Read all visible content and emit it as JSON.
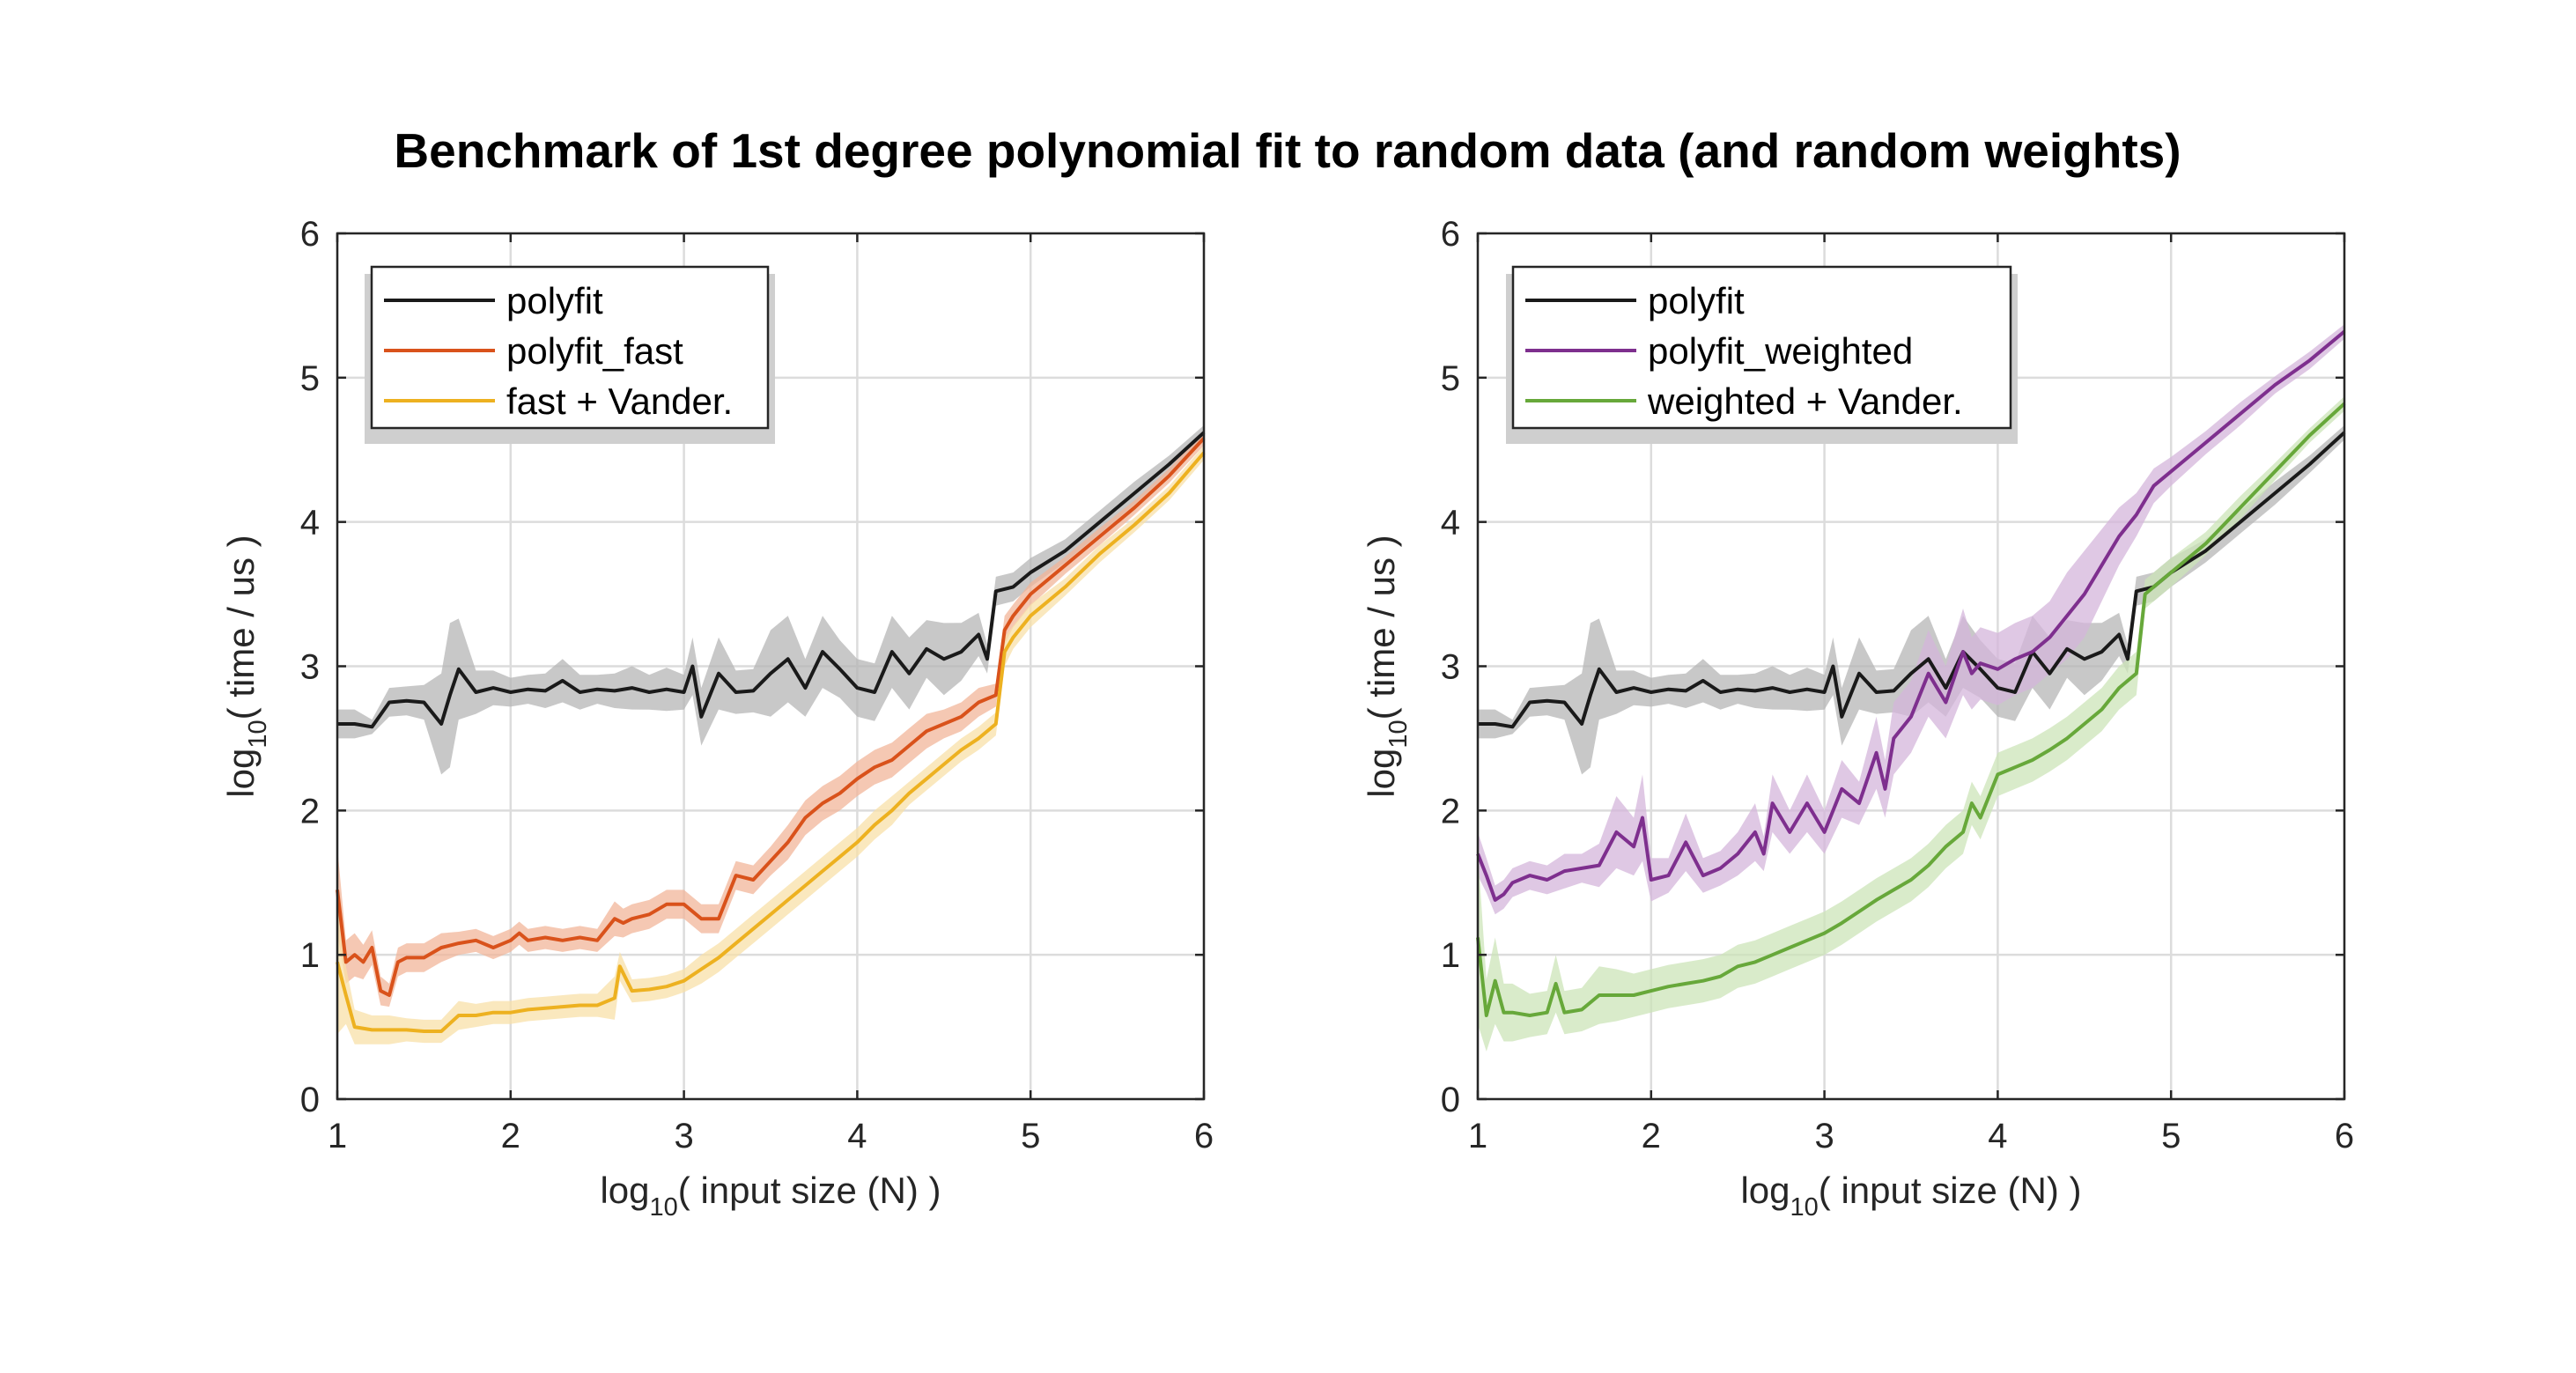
{
  "title": "Benchmark of 1st degree polynomial fit to random data (and random weights)",
  "colors": {
    "polyfit": "#1a1a1a",
    "polyfit_fast": "#d9521b",
    "fast_vander": "#edb120",
    "polyfit_weighted": "#7e2f8e",
    "weighted_vander": "#67a83a",
    "polyfit_band": "#b5b5b5",
    "fast_band": "#f2b59a",
    "fast_vander_band": "#f8e0a8",
    "weighted_band": "#d4b6db",
    "weighted_vander_band": "#cce4b8"
  },
  "chart_data": [
    {
      "type": "line",
      "xlabel": "log",
      "xlabel_sub": "10",
      "xlabel_rest": "( input size (N) )",
      "ylabel": "log",
      "ylabel_sub": "10",
      "ylabel_rest": "( time / us )",
      "xlim": [
        1,
        6
      ],
      "ylim": [
        0,
        6
      ],
      "xticks": [
        "1",
        "2",
        "3",
        "4",
        "5",
        "6"
      ],
      "yticks": [
        "0",
        "1",
        "2",
        "3",
        "4",
        "5",
        "6"
      ],
      "grid": true,
      "legend_position": "top-left",
      "series": [
        {
          "name": "polyfit",
          "color_key": "polyfit",
          "band_key": "polyfit_band",
          "x": [
            1.0,
            1.1,
            1.2,
            1.3,
            1.4,
            1.5,
            1.6,
            1.65,
            1.7,
            1.8,
            1.9,
            2.0,
            2.1,
            2.2,
            2.3,
            2.4,
            2.5,
            2.6,
            2.7,
            2.8,
            2.9,
            3.0,
            3.05,
            3.1,
            3.2,
            3.3,
            3.4,
            3.5,
            3.6,
            3.7,
            3.8,
            3.9,
            4.0,
            4.1,
            4.2,
            4.3,
            4.4,
            4.5,
            4.6,
            4.7,
            4.75,
            4.8,
            4.9,
            5.0,
            5.2,
            5.4,
            5.6,
            5.8,
            6.0
          ],
          "y": [
            2.6,
            2.6,
            2.58,
            2.75,
            2.76,
            2.75,
            2.6,
            2.8,
            2.98,
            2.82,
            2.85,
            2.82,
            2.84,
            2.83,
            2.9,
            2.82,
            2.84,
            2.83,
            2.85,
            2.82,
            2.84,
            2.82,
            3.0,
            2.65,
            2.95,
            2.82,
            2.83,
            2.95,
            3.05,
            2.85,
            3.1,
            2.98,
            2.85,
            2.82,
            3.1,
            2.95,
            3.12,
            3.05,
            3.1,
            3.22,
            3.05,
            3.52,
            3.55,
            3.65,
            3.8,
            4.0,
            4.2,
            4.4,
            4.62
          ],
          "band": [
            0.1,
            0.1,
            0.05,
            0.1,
            0.1,
            0.12,
            0.35,
            0.5,
            0.35,
            0.15,
            0.12,
            0.1,
            0.1,
            0.12,
            0.15,
            0.12,
            0.1,
            0.12,
            0.15,
            0.12,
            0.15,
            0.12,
            0.2,
            0.2,
            0.25,
            0.15,
            0.15,
            0.3,
            0.3,
            0.2,
            0.25,
            0.2,
            0.2,
            0.2,
            0.25,
            0.25,
            0.2,
            0.25,
            0.2,
            0.15,
            0.1,
            0.1,
            0.1,
            0.1,
            0.08,
            0.08,
            0.08,
            0.06,
            0.05
          ]
        },
        {
          "name": "polyfit_fast",
          "color_key": "polyfit_fast",
          "band_key": "fast_band",
          "x": [
            1.0,
            1.05,
            1.1,
            1.15,
            1.2,
            1.25,
            1.3,
            1.35,
            1.4,
            1.5,
            1.6,
            1.7,
            1.8,
            1.9,
            2.0,
            2.05,
            2.1,
            2.2,
            2.3,
            2.4,
            2.5,
            2.6,
            2.65,
            2.7,
            2.8,
            2.9,
            3.0,
            3.1,
            3.2,
            3.3,
            3.4,
            3.5,
            3.6,
            3.7,
            3.8,
            3.9,
            4.0,
            4.1,
            4.2,
            4.3,
            4.4,
            4.5,
            4.6,
            4.7,
            4.8,
            4.85,
            4.9,
            5.0,
            5.2,
            5.4,
            5.6,
            5.8,
            6.0
          ],
          "y": [
            1.45,
            0.95,
            1.0,
            0.95,
            1.05,
            0.75,
            0.72,
            0.95,
            0.98,
            0.98,
            1.05,
            1.08,
            1.1,
            1.05,
            1.1,
            1.15,
            1.1,
            1.12,
            1.1,
            1.12,
            1.1,
            1.25,
            1.22,
            1.25,
            1.28,
            1.35,
            1.35,
            1.25,
            1.25,
            1.55,
            1.52,
            1.65,
            1.78,
            1.95,
            2.05,
            2.12,
            2.22,
            2.3,
            2.35,
            2.45,
            2.55,
            2.6,
            2.65,
            2.75,
            2.8,
            3.25,
            3.35,
            3.5,
            3.7,
            3.9,
            4.1,
            4.32,
            4.58
          ],
          "band": [
            0.3,
            0.15,
            0.15,
            0.12,
            0.12,
            0.1,
            0.08,
            0.1,
            0.1,
            0.1,
            0.1,
            0.08,
            0.08,
            0.08,
            0.08,
            0.08,
            0.08,
            0.08,
            0.08,
            0.08,
            0.08,
            0.12,
            0.1,
            0.1,
            0.1,
            0.1,
            0.1,
            0.1,
            0.1,
            0.1,
            0.1,
            0.1,
            0.12,
            0.12,
            0.12,
            0.12,
            0.12,
            0.12,
            0.12,
            0.12,
            0.12,
            0.1,
            0.1,
            0.1,
            0.08,
            0.1,
            0.08,
            0.08,
            0.06,
            0.06,
            0.05,
            0.05,
            0.05
          ]
        },
        {
          "name": "fast + Vander.",
          "color_key": "fast_vander",
          "band_key": "fast_vander_band",
          "x": [
            1.0,
            1.05,
            1.1,
            1.2,
            1.3,
            1.4,
            1.5,
            1.6,
            1.7,
            1.8,
            1.9,
            2.0,
            2.1,
            2.2,
            2.3,
            2.4,
            2.5,
            2.6,
            2.63,
            2.7,
            2.8,
            2.9,
            3.0,
            3.1,
            3.2,
            3.3,
            3.4,
            3.5,
            3.6,
            3.7,
            3.8,
            3.9,
            4.0,
            4.1,
            4.2,
            4.3,
            4.4,
            4.5,
            4.6,
            4.7,
            4.8,
            4.85,
            4.9,
            5.0,
            5.2,
            5.4,
            5.6,
            5.8,
            6.0
          ],
          "y": [
            0.95,
            0.72,
            0.5,
            0.48,
            0.48,
            0.48,
            0.47,
            0.47,
            0.58,
            0.58,
            0.6,
            0.6,
            0.62,
            0.63,
            0.64,
            0.65,
            0.65,
            0.7,
            0.92,
            0.75,
            0.76,
            0.78,
            0.82,
            0.9,
            0.98,
            1.08,
            1.18,
            1.28,
            1.38,
            1.48,
            1.58,
            1.68,
            1.78,
            1.9,
            2.0,
            2.12,
            2.22,
            2.32,
            2.42,
            2.5,
            2.6,
            3.1,
            3.2,
            3.35,
            3.55,
            3.78,
            3.98,
            4.2,
            4.48
          ],
          "band": [
            0.5,
            0.2,
            0.12,
            0.1,
            0.1,
            0.08,
            0.08,
            0.08,
            0.1,
            0.08,
            0.08,
            0.08,
            0.08,
            0.08,
            0.08,
            0.08,
            0.08,
            0.15,
            0.1,
            0.08,
            0.08,
            0.08,
            0.08,
            0.1,
            0.1,
            0.1,
            0.1,
            0.1,
            0.1,
            0.1,
            0.1,
            0.1,
            0.1,
            0.1,
            0.1,
            0.08,
            0.08,
            0.08,
            0.08,
            0.08,
            0.08,
            0.1,
            0.08,
            0.08,
            0.06,
            0.06,
            0.05,
            0.05,
            0.05
          ]
        }
      ]
    },
    {
      "type": "line",
      "xlabel": "log",
      "xlabel_sub": "10",
      "xlabel_rest": "( input size (N) )",
      "ylabel": "log",
      "ylabel_sub": "10",
      "ylabel_rest": "( time / us )",
      "xlim": [
        1,
        6
      ],
      "ylim": [
        0,
        6
      ],
      "xticks": [
        "1",
        "2",
        "3",
        "4",
        "5",
        "6"
      ],
      "yticks": [
        "0",
        "1",
        "2",
        "3",
        "4",
        "5",
        "6"
      ],
      "grid": true,
      "legend_position": "top-left",
      "series": [
        {
          "name": "polyfit",
          "color_key": "polyfit",
          "band_key": "polyfit_band",
          "x": [
            1.0,
            1.1,
            1.2,
            1.3,
            1.4,
            1.5,
            1.6,
            1.65,
            1.7,
            1.8,
            1.9,
            2.0,
            2.1,
            2.2,
            2.3,
            2.4,
            2.5,
            2.6,
            2.7,
            2.8,
            2.9,
            3.0,
            3.05,
            3.1,
            3.2,
            3.3,
            3.4,
            3.5,
            3.6,
            3.7,
            3.8,
            3.9,
            4.0,
            4.1,
            4.2,
            4.3,
            4.4,
            4.5,
            4.6,
            4.7,
            4.75,
            4.8,
            4.9,
            5.0,
            5.2,
            5.4,
            5.6,
            5.8,
            6.0
          ],
          "y": [
            2.6,
            2.6,
            2.58,
            2.75,
            2.76,
            2.75,
            2.6,
            2.8,
            2.98,
            2.82,
            2.85,
            2.82,
            2.84,
            2.83,
            2.9,
            2.82,
            2.84,
            2.83,
            2.85,
            2.82,
            2.84,
            2.82,
            3.0,
            2.65,
            2.95,
            2.82,
            2.83,
            2.95,
            3.05,
            2.85,
            3.1,
            2.98,
            2.85,
            2.82,
            3.1,
            2.95,
            3.12,
            3.05,
            3.1,
            3.22,
            3.05,
            3.52,
            3.55,
            3.65,
            3.8,
            4.0,
            4.2,
            4.4,
            4.62
          ],
          "band": [
            0.1,
            0.1,
            0.05,
            0.1,
            0.1,
            0.12,
            0.35,
            0.5,
            0.35,
            0.15,
            0.12,
            0.1,
            0.1,
            0.12,
            0.15,
            0.12,
            0.1,
            0.12,
            0.15,
            0.12,
            0.15,
            0.12,
            0.2,
            0.2,
            0.25,
            0.15,
            0.15,
            0.3,
            0.3,
            0.2,
            0.25,
            0.2,
            0.2,
            0.2,
            0.25,
            0.25,
            0.2,
            0.25,
            0.2,
            0.15,
            0.1,
            0.1,
            0.1,
            0.1,
            0.08,
            0.08,
            0.08,
            0.06,
            0.05
          ]
        },
        {
          "name": "polyfit_weighted",
          "color_key": "polyfit_weighted",
          "band_key": "weighted_band",
          "x": [
            1.0,
            1.05,
            1.1,
            1.15,
            1.2,
            1.3,
            1.4,
            1.5,
            1.6,
            1.7,
            1.8,
            1.9,
            1.95,
            2.0,
            2.1,
            2.2,
            2.3,
            2.4,
            2.5,
            2.6,
            2.65,
            2.7,
            2.8,
            2.9,
            3.0,
            3.1,
            3.2,
            3.3,
            3.35,
            3.4,
            3.5,
            3.6,
            3.7,
            3.8,
            3.85,
            3.9,
            4.0,
            4.1,
            4.2,
            4.3,
            4.4,
            4.5,
            4.6,
            4.7,
            4.8,
            4.9,
            5.0,
            5.2,
            5.4,
            5.6,
            5.8,
            6.0
          ],
          "y": [
            1.7,
            1.55,
            1.38,
            1.42,
            1.5,
            1.55,
            1.52,
            1.58,
            1.6,
            1.62,
            1.85,
            1.75,
            1.95,
            1.52,
            1.55,
            1.78,
            1.55,
            1.6,
            1.7,
            1.85,
            1.7,
            2.05,
            1.85,
            2.05,
            1.85,
            2.15,
            2.05,
            2.4,
            2.15,
            2.5,
            2.65,
            2.95,
            2.75,
            3.1,
            2.95,
            3.02,
            2.98,
            3.05,
            3.1,
            3.2,
            3.35,
            3.5,
            3.7,
            3.9,
            4.05,
            4.25,
            4.35,
            4.55,
            4.75,
            4.95,
            5.12,
            5.32
          ],
          "band": [
            0.15,
            0.12,
            0.1,
            0.1,
            0.1,
            0.1,
            0.1,
            0.12,
            0.1,
            0.15,
            0.25,
            0.2,
            0.3,
            0.15,
            0.12,
            0.2,
            0.12,
            0.12,
            0.15,
            0.2,
            0.12,
            0.2,
            0.15,
            0.2,
            0.15,
            0.2,
            0.15,
            0.25,
            0.2,
            0.25,
            0.25,
            0.3,
            0.25,
            0.3,
            0.25,
            0.25,
            0.25,
            0.25,
            0.25,
            0.25,
            0.3,
            0.3,
            0.25,
            0.2,
            0.15,
            0.12,
            0.1,
            0.08,
            0.08,
            0.06,
            0.06,
            0.05
          ]
        },
        {
          "name": "weighted + Vander.",
          "color_key": "weighted_vander",
          "band_key": "weighted_vander_band",
          "x": [
            1.0,
            1.05,
            1.1,
            1.15,
            1.2,
            1.3,
            1.4,
            1.45,
            1.5,
            1.6,
            1.7,
            1.8,
            1.9,
            2.0,
            2.1,
            2.2,
            2.3,
            2.4,
            2.5,
            2.6,
            2.7,
            2.8,
            2.9,
            3.0,
            3.1,
            3.2,
            3.3,
            3.4,
            3.5,
            3.6,
            3.7,
            3.8,
            3.85,
            3.9,
            4.0,
            4.1,
            4.2,
            4.3,
            4.4,
            4.5,
            4.6,
            4.7,
            4.8,
            4.85,
            4.9,
            5.0,
            5.2,
            5.4,
            5.6,
            5.8,
            6.0
          ],
          "y": [
            1.12,
            0.58,
            0.82,
            0.6,
            0.6,
            0.58,
            0.6,
            0.8,
            0.6,
            0.62,
            0.72,
            0.72,
            0.72,
            0.75,
            0.78,
            0.8,
            0.82,
            0.85,
            0.92,
            0.95,
            1.0,
            1.05,
            1.1,
            1.15,
            1.22,
            1.3,
            1.38,
            1.45,
            1.52,
            1.62,
            1.75,
            1.85,
            2.05,
            1.95,
            2.25,
            2.3,
            2.35,
            2.42,
            2.5,
            2.6,
            2.7,
            2.85,
            2.95,
            3.5,
            3.55,
            3.65,
            3.85,
            4.1,
            4.35,
            4.6,
            4.82
          ],
          "band": [
            0.6,
            0.25,
            0.3,
            0.2,
            0.2,
            0.15,
            0.15,
            0.2,
            0.15,
            0.15,
            0.2,
            0.18,
            0.15,
            0.15,
            0.15,
            0.15,
            0.15,
            0.15,
            0.15,
            0.15,
            0.15,
            0.15,
            0.15,
            0.15,
            0.15,
            0.15,
            0.15,
            0.15,
            0.15,
            0.15,
            0.15,
            0.15,
            0.15,
            0.15,
            0.15,
            0.15,
            0.15,
            0.15,
            0.15,
            0.15,
            0.15,
            0.15,
            0.15,
            0.1,
            0.1,
            0.1,
            0.08,
            0.08,
            0.06,
            0.05,
            0.05
          ]
        }
      ]
    }
  ]
}
